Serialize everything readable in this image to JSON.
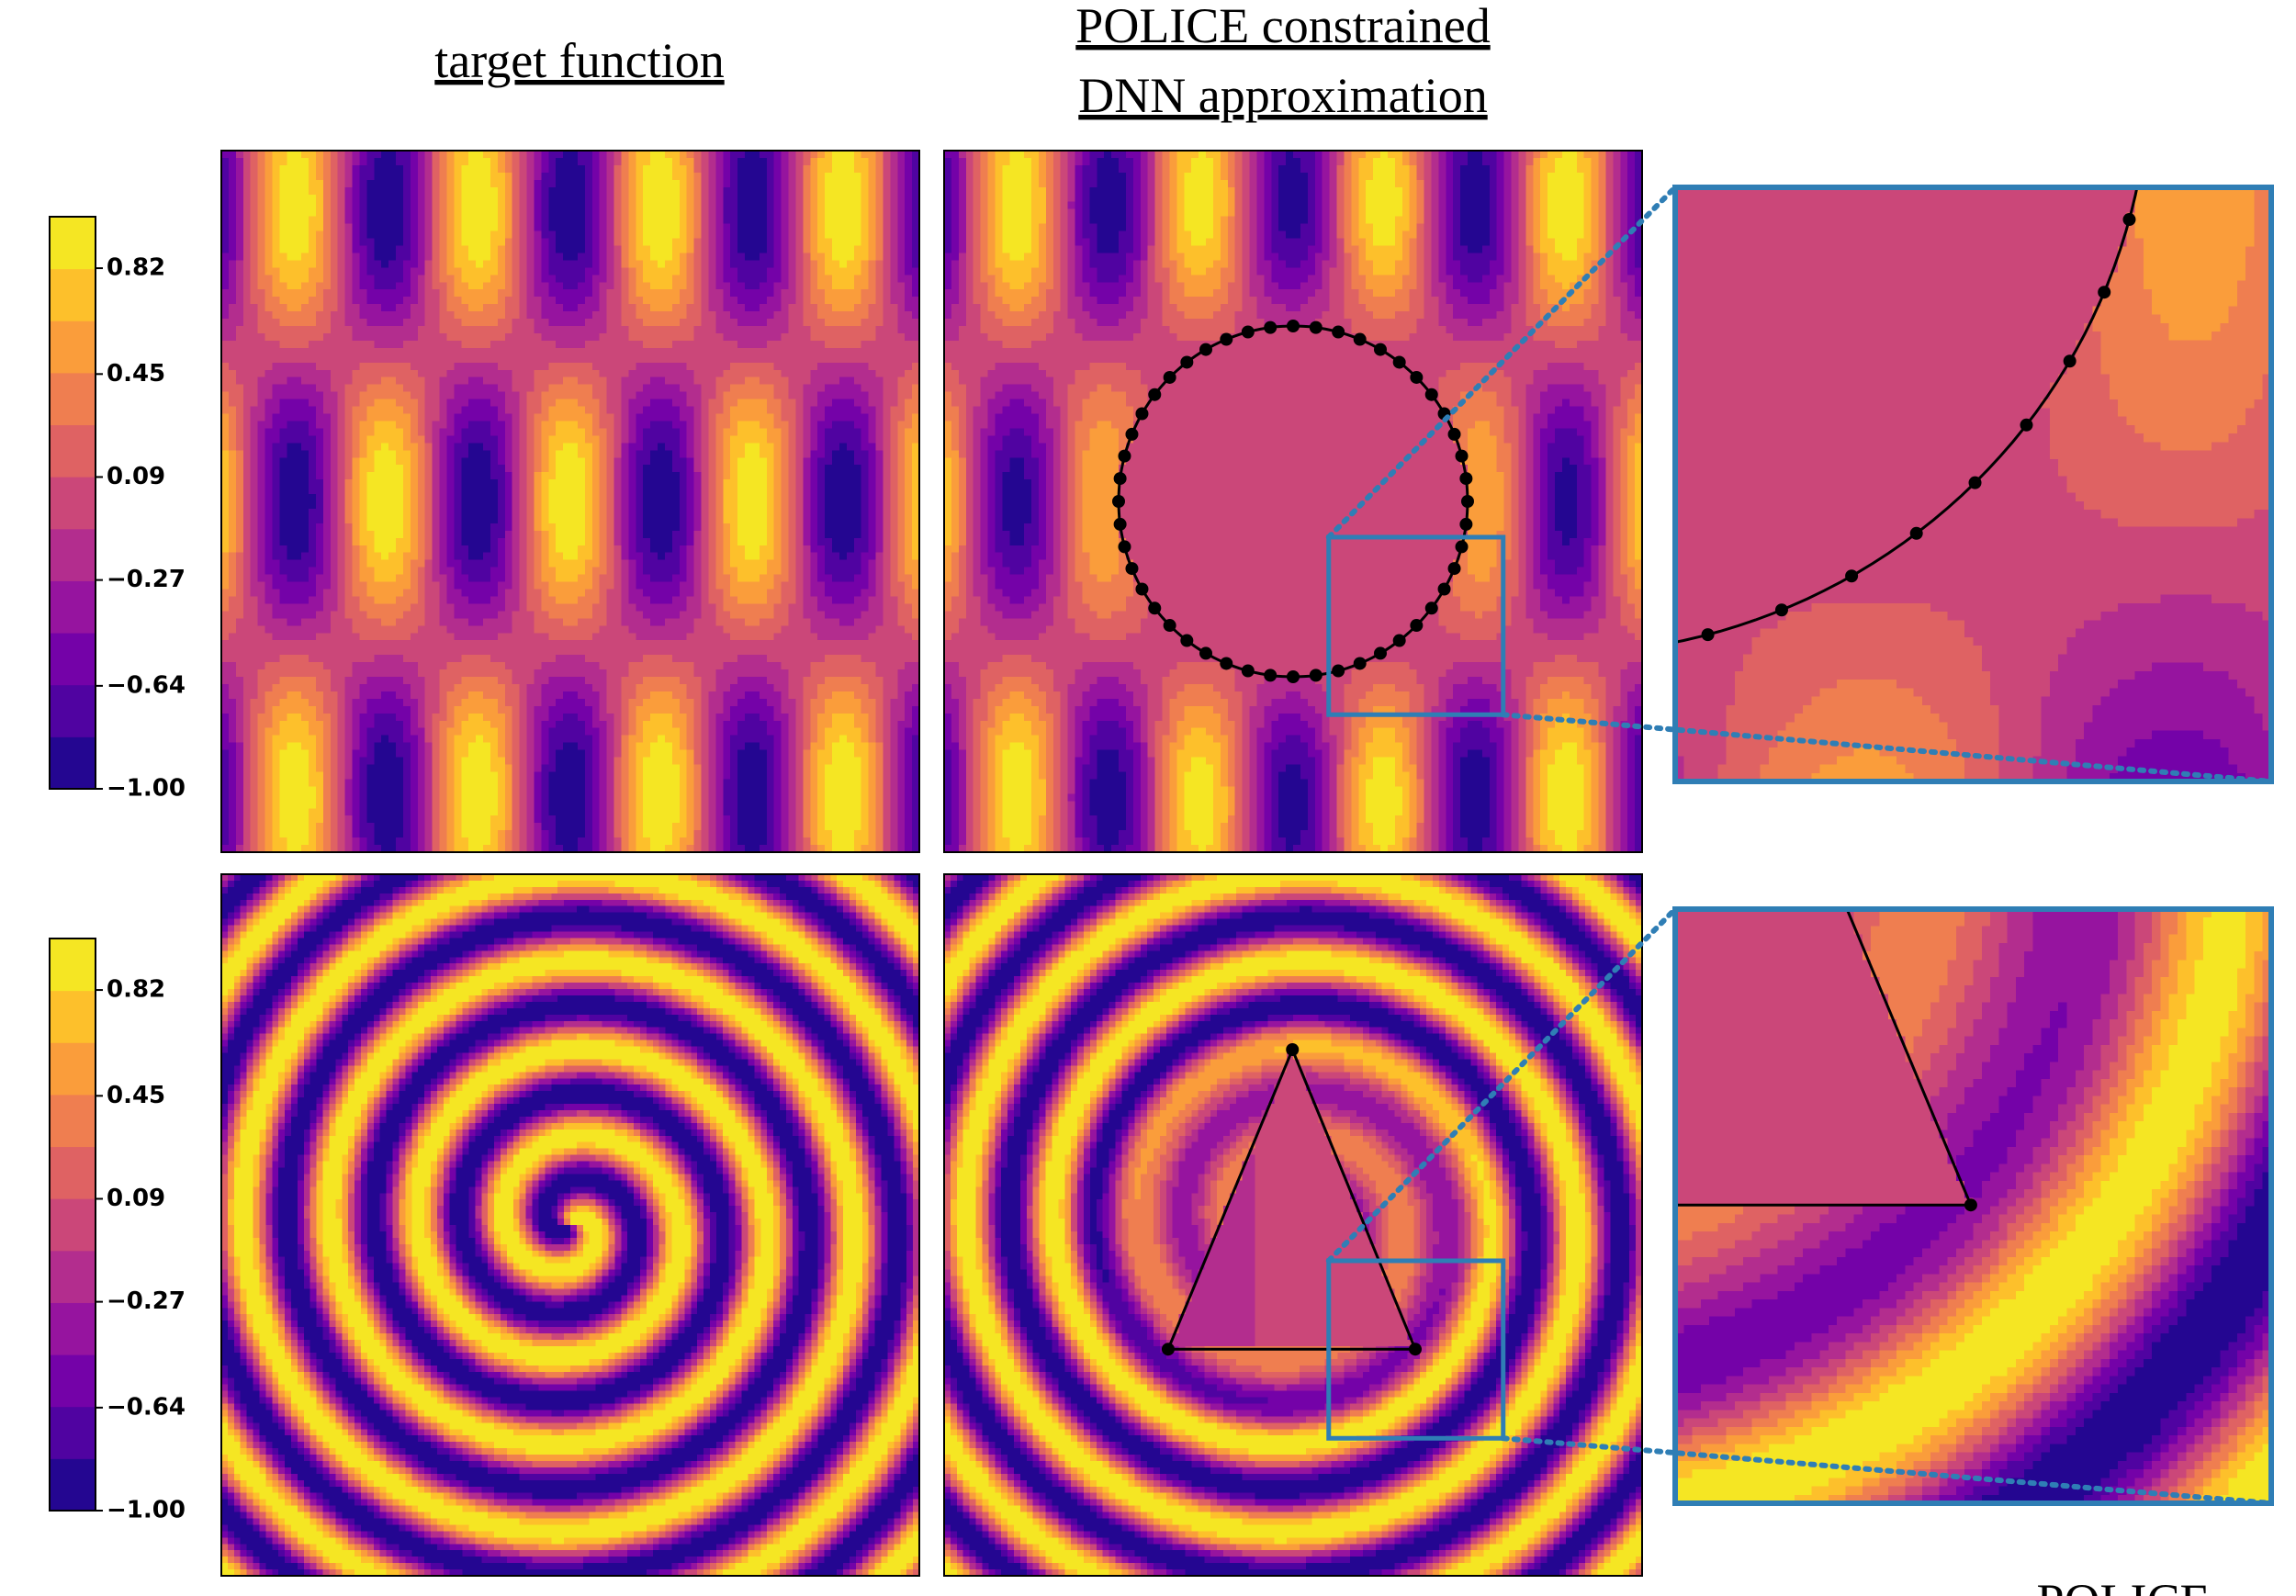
{
  "column_titles": [
    "target function",
    "POLICE constrained",
    "DNN approximation"
  ],
  "footer": "POLICE",
  "chart_data": [
    {
      "type": "contour",
      "colorbar_lim": [
        -1,
        1
      ],
      "colorbar_ticks": [
        {
          "value": -1,
          "label": "−1.00"
        },
        {
          "value": -0.64,
          "label": "−0.64"
        },
        {
          "value": -0.27,
          "label": "−0.27"
        },
        0.09,
        0.45,
        0.82
      ]
    },
    {
      "type": "contour",
      "colorbar_lim": [
        -1,
        1
      ],
      "colorbar_ticks": [
        {
          "value": -1,
          "label": "−1.00"
        },
        {
          "value": -0.64,
          "label": "−0.64"
        },
        {
          "value": -0.27,
          "label": "−0.27"
        },
        0.09,
        0.45,
        0.82
      ]
    }
  ]
}
